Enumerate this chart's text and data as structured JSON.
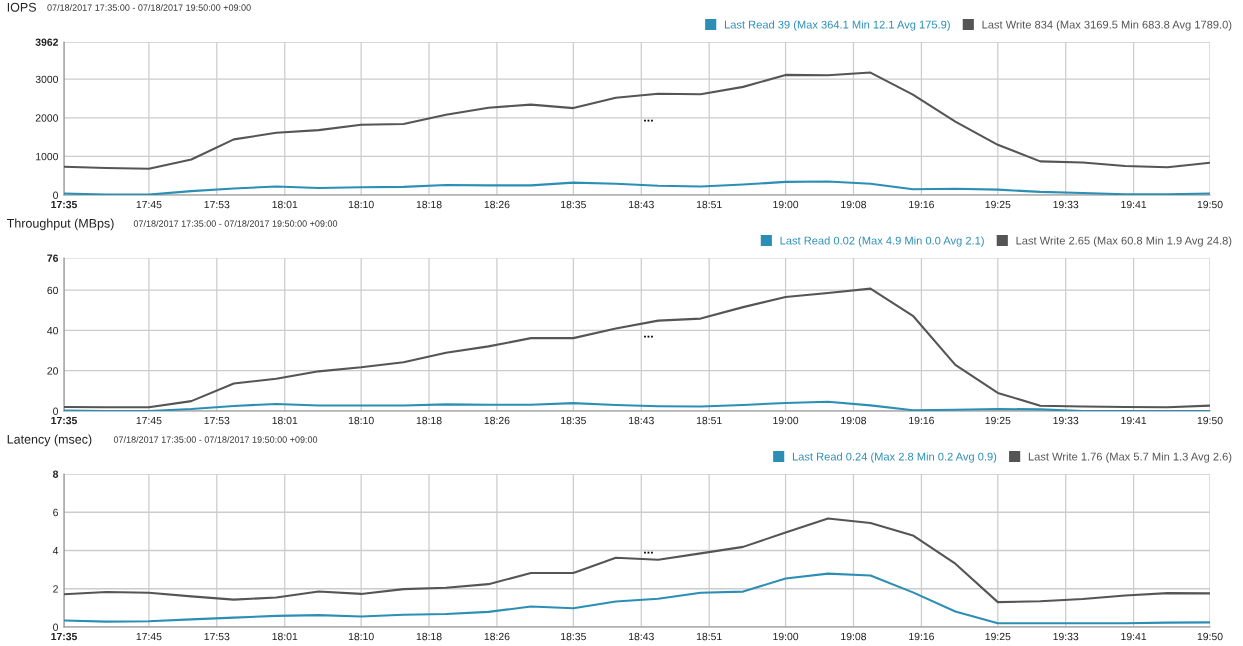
{
  "chart_data": [
    {
      "type": "line",
      "title": "IOPS",
      "subtitle": "07/18/2017 17:35:00 - 07/18/2017 19:50:00 +09:00",
      "x": [
        17.5833,
        17.6667,
        17.75,
        17.8333,
        17.9167,
        18,
        18.0833,
        18.1667,
        18.25,
        18.3333,
        18.4167,
        18.5,
        18.5833,
        18.6667,
        18.75,
        18.8333,
        18.9167,
        19,
        19.0833,
        19.1667,
        19.25,
        19.3333,
        19.4167,
        19.5,
        19.5833,
        19.6667,
        19.75,
        19.8333
      ],
      "series": [
        {
          "name": "Last Read 39 (Max 364.1 Min 12.1 Avg 175.9)",
          "color": "#2b8fb5",
          "values": [
            40,
            10,
            10,
            100,
            170,
            220,
            180,
            200,
            210,
            260,
            250,
            250,
            320,
            290,
            240,
            220,
            270,
            340,
            350,
            290,
            150,
            160,
            140,
            80,
            50,
            20,
            20,
            39
          ]
        },
        {
          "name": "Last Write 834 (Max 3169.5 Min 683.8 Avg 1789.0)",
          "color": "#555555",
          "values": [
            730,
            700,
            680,
            920,
            1440,
            1610,
            1680,
            1820,
            1840,
            2080,
            2260,
            2340,
            2250,
            2520,
            2620,
            2610,
            2800,
            3110,
            3100,
            3170,
            2600,
            1900,
            1300,
            870,
            840,
            750,
            720,
            834
          ]
        }
      ],
      "xlim": [
        17.5833,
        19.8333
      ],
      "xticks": [
        {
          "value": 17.5833,
          "label": "17:35"
        },
        {
          "value": 17.75,
          "label": "17:45"
        },
        {
          "value": 17.8833,
          "label": "17:53"
        },
        {
          "value": 18.0167,
          "label": "18:01"
        },
        {
          "value": 18.1667,
          "label": "18:10"
        },
        {
          "value": 18.3,
          "label": "18:18"
        },
        {
          "value": 18.4333,
          "label": "18:26"
        },
        {
          "value": 18.5833,
          "label": "18:35"
        },
        {
          "value": 18.7167,
          "label": "18:43"
        },
        {
          "value": 18.85,
          "label": "18:51"
        },
        {
          "value": 19.0,
          "label": "19:00"
        },
        {
          "value": 19.1333,
          "label": "19:08"
        },
        {
          "value": 19.2667,
          "label": "19:16"
        },
        {
          "value": 19.4167,
          "label": "19:25"
        },
        {
          "value": 19.55,
          "label": "19:33"
        },
        {
          "value": 19.6833,
          "label": "19:41"
        },
        {
          "value": 19.8333,
          "label": "19:50"
        }
      ],
      "ylim": [
        0,
        3962
      ],
      "yticks": [
        0,
        1000,
        2000,
        3000,
        3962
      ],
      "annotations": [
        "..."
      ],
      "grid": true,
      "legend": "top right"
    },
    {
      "type": "line",
      "title": "Throughput (MBps)",
      "subtitle": "07/18/2017 17:35:00 - 07/18/2017 19:50:00 +09:00",
      "x": [
        17.5833,
        17.6667,
        17.75,
        17.8333,
        17.9167,
        18,
        18.0833,
        18.1667,
        18.25,
        18.3333,
        18.4167,
        18.5,
        18.5833,
        18.6667,
        18.75,
        18.8333,
        18.9167,
        19,
        19.0833,
        19.1667,
        19.25,
        19.3333,
        19.4167,
        19.5,
        19.5833,
        19.6667,
        19.75,
        19.8333
      ],
      "series": [
        {
          "name": "Last Read 0.02 (Max 4.9 Min 0.0 Avg 2.1)",
          "color": "#2b8fb5",
          "values": [
            0.2,
            0,
            0,
            1.0,
            2.5,
            3.5,
            2.7,
            2.7,
            2.7,
            3.3,
            3.1,
            3.1,
            3.9,
            3.0,
            2.4,
            2.2,
            3.0,
            4.0,
            4.6,
            2.8,
            0.4,
            0.6,
            1.0,
            0.8,
            0,
            0,
            0,
            0.02
          ]
        },
        {
          "name": "Last Write 2.65 (Max 60.8 Min 1.9 Avg 24.8)",
          "color": "#555555",
          "values": [
            2.0,
            1.9,
            1.9,
            4.9,
            13.7,
            16,
            19.7,
            21.7,
            24.2,
            28.9,
            32.1,
            36.2,
            36.2,
            41,
            44.9,
            45.9,
            51.6,
            56.6,
            58.6,
            60.8,
            47.3,
            22.9,
            9.0,
            2.6,
            2.2,
            2.0,
            1.9,
            2.65
          ]
        }
      ],
      "xlim": [
        17.5833,
        19.8333
      ],
      "xticks": [
        {
          "value": 17.5833,
          "label": "17:35"
        },
        {
          "value": 17.75,
          "label": "17:45"
        },
        {
          "value": 17.8833,
          "label": "17:53"
        },
        {
          "value": 18.0167,
          "label": "18:01"
        },
        {
          "value": 18.1667,
          "label": "18:10"
        },
        {
          "value": 18.3,
          "label": "18:18"
        },
        {
          "value": 18.4333,
          "label": "18:26"
        },
        {
          "value": 18.5833,
          "label": "18:35"
        },
        {
          "value": 18.7167,
          "label": "18:43"
        },
        {
          "value": 18.85,
          "label": "18:51"
        },
        {
          "value": 19.0,
          "label": "19:00"
        },
        {
          "value": 19.1333,
          "label": "19:08"
        },
        {
          "value": 19.2667,
          "label": "19:16"
        },
        {
          "value": 19.4167,
          "label": "19:25"
        },
        {
          "value": 19.55,
          "label": "19:33"
        },
        {
          "value": 19.6833,
          "label": "19:41"
        },
        {
          "value": 19.8333,
          "label": "19:50"
        }
      ],
      "ylim": [
        0,
        76
      ],
      "yticks": [
        0,
        20,
        40,
        60,
        76
      ],
      "annotations": [
        "..."
      ],
      "grid": true,
      "legend": "top right"
    },
    {
      "type": "line",
      "title": "Latency (msec)",
      "subtitle": "07/18/2017 17:35:00 - 07/18/2017 19:50:00 +09:00",
      "x": [
        17.5833,
        17.6667,
        17.75,
        17.8333,
        17.9167,
        18,
        18.0833,
        18.1667,
        18.25,
        18.3333,
        18.4167,
        18.5,
        18.5833,
        18.6667,
        18.75,
        18.8333,
        18.9167,
        19,
        19.0833,
        19.1667,
        19.25,
        19.3333,
        19.4167,
        19.5,
        19.5833,
        19.6667,
        19.75,
        19.8333
      ],
      "series": [
        {
          "name": "Last Read 0.24 (Max 2.8 Min 0.2 Avg 0.9)",
          "color": "#2b8fb5",
          "values": [
            0.34,
            0.28,
            0.3,
            0.4,
            0.49,
            0.58,
            0.62,
            0.55,
            0.64,
            0.68,
            0.79,
            1.07,
            0.98,
            1.33,
            1.48,
            1.79,
            1.85,
            2.54,
            2.79,
            2.69,
            1.81,
            0.81,
            0.2,
            0.2,
            0.2,
            0.2,
            0.23,
            0.24
          ]
        },
        {
          "name": "Last Write 1.76 (Max 5.7 Min 1.3 Avg 2.6)",
          "color": "#555555",
          "values": [
            1.71,
            1.83,
            1.79,
            1.6,
            1.43,
            1.54,
            1.86,
            1.73,
            1.98,
            2.05,
            2.24,
            2.82,
            2.82,
            3.62,
            3.52,
            3.85,
            4.19,
            4.94,
            5.67,
            5.44,
            4.79,
            3.31,
            1.3,
            1.35,
            1.46,
            1.65,
            1.77,
            1.76
          ]
        }
      ],
      "xlim": [
        17.5833,
        19.8333
      ],
      "xticks": [
        {
          "value": 17.5833,
          "label": "17:35"
        },
        {
          "value": 17.75,
          "label": "17:45"
        },
        {
          "value": 17.8833,
          "label": "17:53"
        },
        {
          "value": 18.0167,
          "label": "18:01"
        },
        {
          "value": 18.1667,
          "label": "18:10"
        },
        {
          "value": 18.3,
          "label": "18:18"
        },
        {
          "value": 18.4333,
          "label": "18:26"
        },
        {
          "value": 18.5833,
          "label": "18:35"
        },
        {
          "value": 18.7167,
          "label": "18:43"
        },
        {
          "value": 18.85,
          "label": "18:51"
        },
        {
          "value": 19.0,
          "label": "19:00"
        },
        {
          "value": 19.1333,
          "label": "19:08"
        },
        {
          "value": 19.2667,
          "label": "19:16"
        },
        {
          "value": 19.4167,
          "label": "19:25"
        },
        {
          "value": 19.55,
          "label": "19:33"
        },
        {
          "value": 19.6833,
          "label": "19:41"
        },
        {
          "value": 19.8333,
          "label": "19:50"
        }
      ],
      "ylim": [
        0,
        8
      ],
      "yticks": [
        0,
        2,
        4,
        6,
        8
      ],
      "annotations": [
        "..."
      ],
      "grid": true,
      "legend": "top right"
    }
  ]
}
